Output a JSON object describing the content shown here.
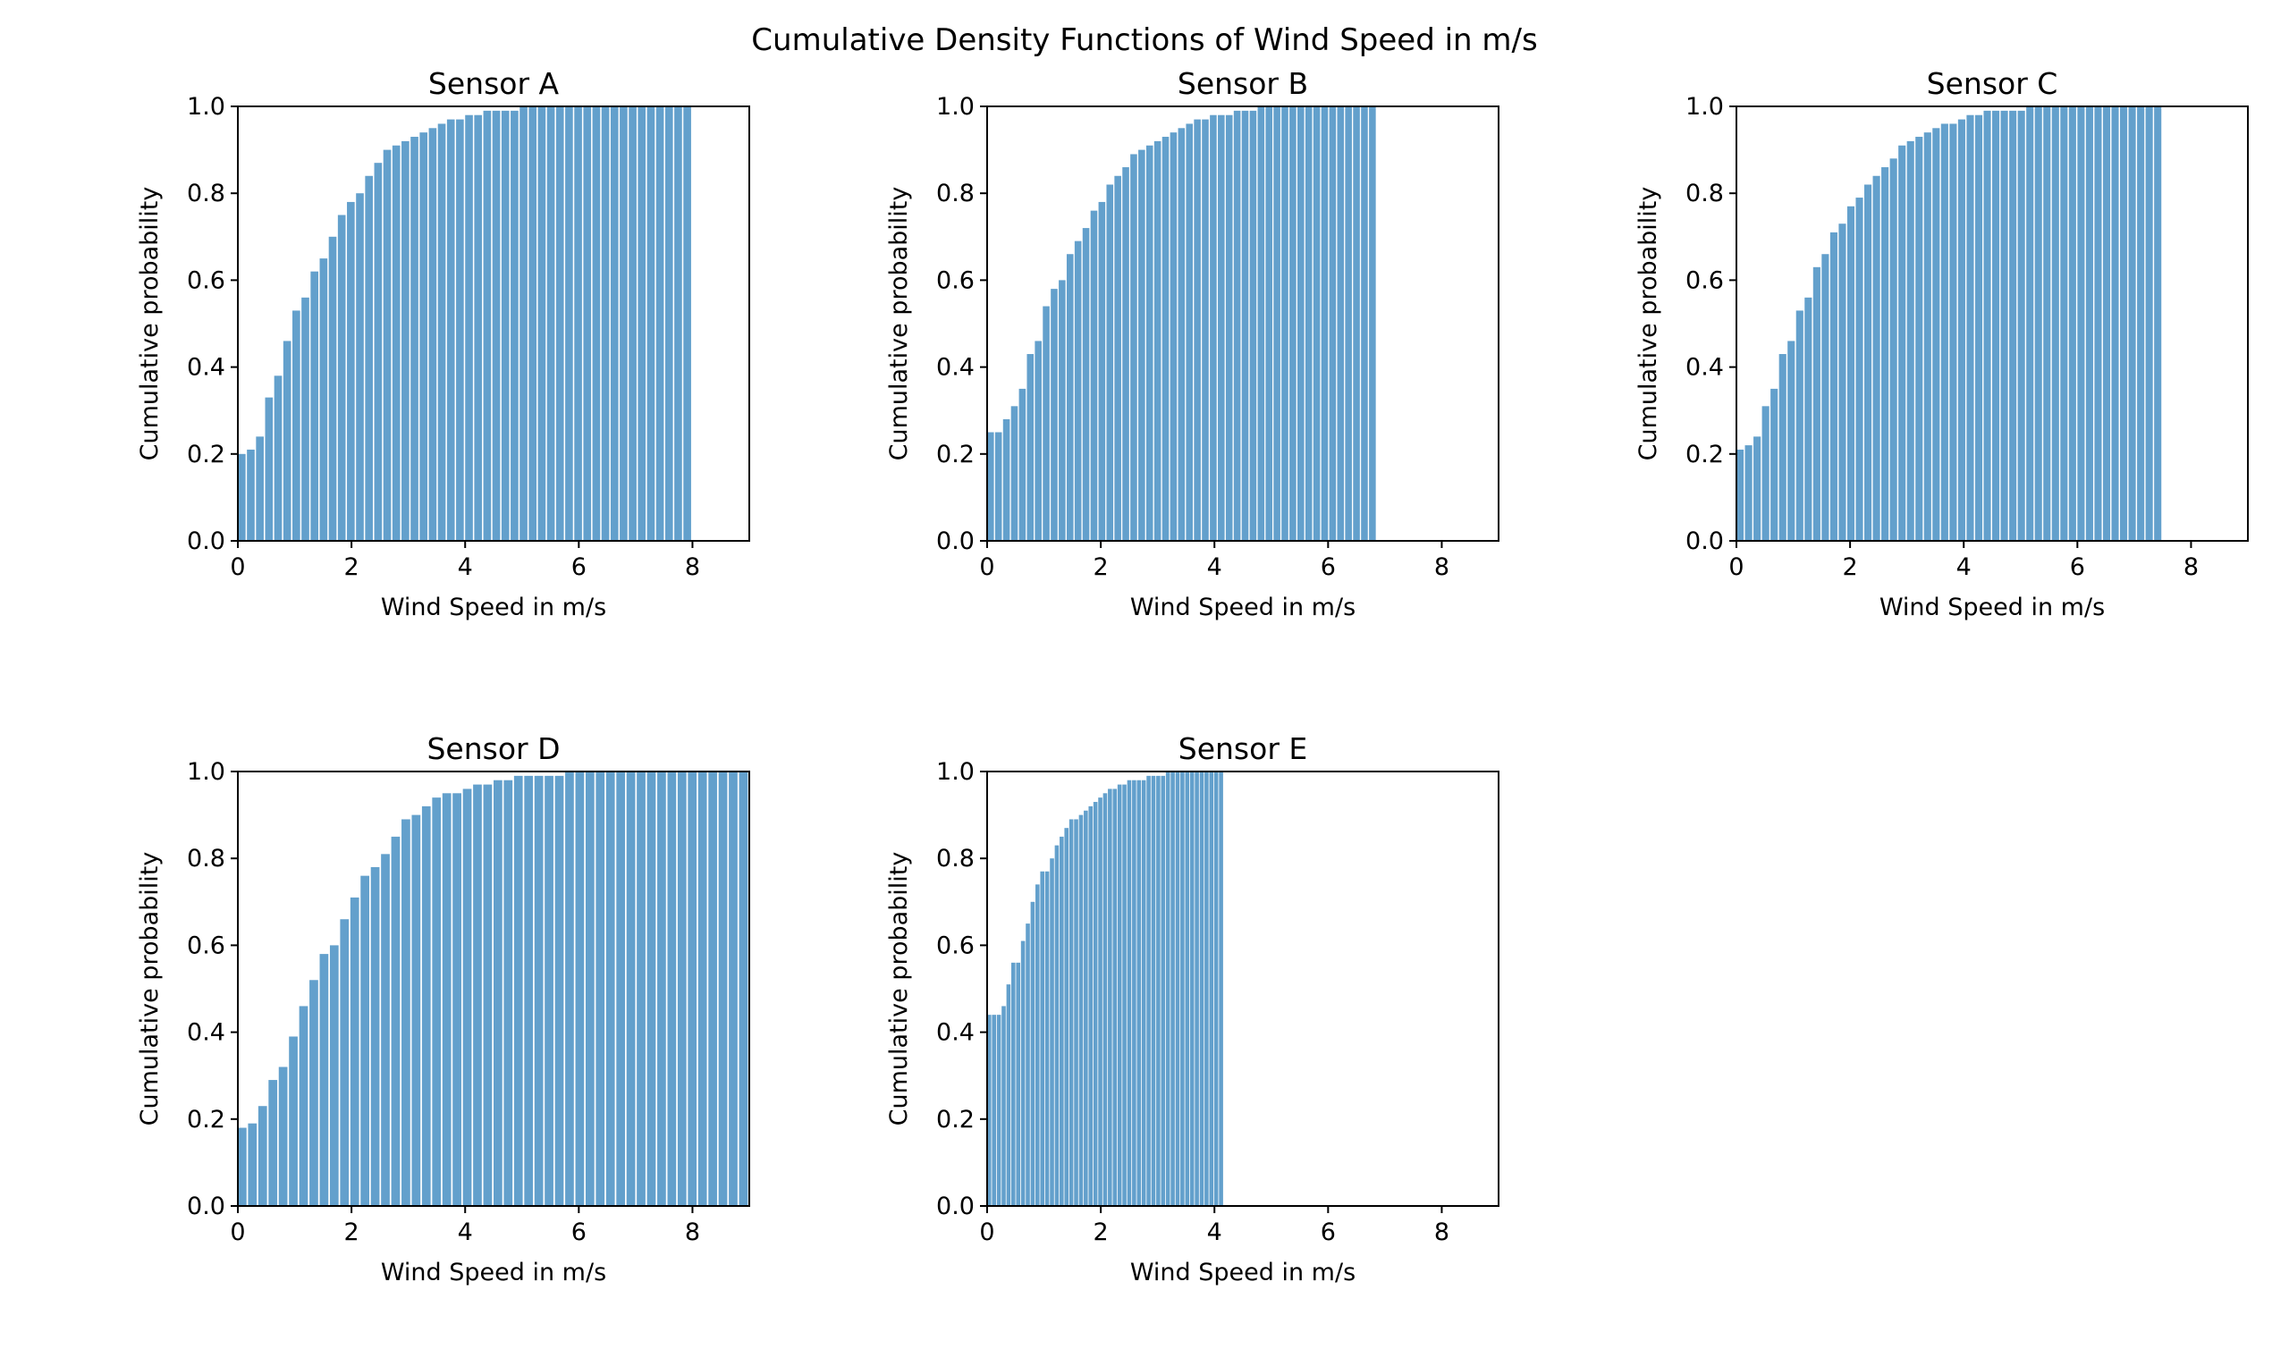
{
  "figure": {
    "title": "Cumulative Density Functions of Wind Speed in m/s",
    "bar_color": "#5b9bc9"
  },
  "chart_data": [
    {
      "type": "bar",
      "title": "Sensor A",
      "xlabel": "Wind Speed in m/s",
      "ylabel": "Cumulative probability",
      "xlim": [
        0,
        9
      ],
      "ylim": [
        0,
        1
      ],
      "xticks": [
        0,
        2,
        4,
        6,
        8
      ],
      "yticks": [
        0.0,
        0.2,
        0.4,
        0.6,
        0.8,
        1.0
      ],
      "x": [
        0.0,
        0.16,
        0.32,
        0.48,
        0.64,
        0.8,
        0.96,
        1.12,
        1.28,
        1.44,
        1.6,
        1.76,
        1.92,
        2.08,
        2.24,
        2.4,
        2.56,
        2.72,
        2.88,
        3.04,
        3.2,
        3.36,
        3.52,
        3.68,
        3.84,
        4.0,
        4.16,
        4.32,
        4.48,
        4.64,
        4.8,
        4.96,
        5.12,
        5.28,
        5.44,
        5.6,
        5.76,
        5.92,
        6.08,
        6.24,
        6.4,
        6.56,
        6.72,
        6.88,
        7.04,
        7.2,
        7.36,
        7.52,
        7.68,
        7.84
      ],
      "values": [
        0.2,
        0.21,
        0.24,
        0.33,
        0.38,
        0.46,
        0.53,
        0.56,
        0.62,
        0.65,
        0.7,
        0.75,
        0.78,
        0.8,
        0.84,
        0.87,
        0.9,
        0.91,
        0.92,
        0.93,
        0.94,
        0.95,
        0.96,
        0.97,
        0.97,
        0.98,
        0.98,
        0.99,
        0.99,
        0.99,
        0.99,
        1.0,
        1.0,
        1.0,
        1.0,
        1.0,
        1.0,
        1.0,
        1.0,
        1.0,
        1.0,
        1.0,
        1.0,
        1.0,
        1.0,
        1.0,
        1.0,
        1.0,
        1.0,
        1.0
      ]
    },
    {
      "type": "bar",
      "title": "Sensor B",
      "xlabel": "Wind Speed in m/s",
      "ylabel": "Cumulative probability",
      "xlim": [
        0,
        9
      ],
      "ylim": [
        0,
        1
      ],
      "xticks": [
        0,
        2,
        4,
        6,
        8
      ],
      "yticks": [
        0.0,
        0.2,
        0.4,
        0.6,
        0.8,
        1.0
      ],
      "x": [
        0.0,
        0.14,
        0.28,
        0.42,
        0.56,
        0.7,
        0.84,
        0.98,
        1.12,
        1.26,
        1.4,
        1.54,
        1.68,
        1.82,
        1.96,
        2.1,
        2.24,
        2.38,
        2.52,
        2.66,
        2.8,
        2.94,
        3.08,
        3.22,
        3.36,
        3.5,
        3.64,
        3.78,
        3.92,
        4.06,
        4.2,
        4.34,
        4.48,
        4.62,
        4.76,
        4.9,
        5.04,
        5.18,
        5.32,
        5.46,
        5.6,
        5.74,
        5.88,
        6.02,
        6.16,
        6.3,
        6.44,
        6.58,
        6.72
      ],
      "values": [
        0.25,
        0.25,
        0.28,
        0.31,
        0.35,
        0.43,
        0.46,
        0.54,
        0.58,
        0.6,
        0.66,
        0.69,
        0.72,
        0.76,
        0.78,
        0.82,
        0.84,
        0.86,
        0.89,
        0.9,
        0.91,
        0.92,
        0.93,
        0.94,
        0.95,
        0.96,
        0.97,
        0.97,
        0.98,
        0.98,
        0.98,
        0.99,
        0.99,
        0.99,
        1.0,
        1.0,
        1.0,
        1.0,
        1.0,
        1.0,
        1.0,
        1.0,
        1.0,
        1.0,
        1.0,
        1.0,
        1.0,
        1.0,
        1.0
      ]
    },
    {
      "type": "bar",
      "title": "Sensor C",
      "xlabel": "Wind Speed in m/s",
      "ylabel": "Cumulative probability",
      "xlim": [
        0,
        9
      ],
      "ylim": [
        0,
        1
      ],
      "xticks": [
        0,
        2,
        4,
        6,
        8
      ],
      "yticks": [
        0.0,
        0.2,
        0.4,
        0.6,
        0.8,
        1.0
      ],
      "x": [
        0.0,
        0.15,
        0.3,
        0.45,
        0.6,
        0.75,
        0.9,
        1.05,
        1.2,
        1.35,
        1.5,
        1.65,
        1.8,
        1.95,
        2.1,
        2.25,
        2.4,
        2.55,
        2.7,
        2.85,
        3.0,
        3.15,
        3.3,
        3.45,
        3.6,
        3.75,
        3.9,
        4.05,
        4.2,
        4.35,
        4.5,
        4.65,
        4.8,
        4.95,
        5.1,
        5.25,
        5.4,
        5.55,
        5.7,
        5.85,
        6.0,
        6.15,
        6.3,
        6.45,
        6.6,
        6.75,
        6.9,
        7.05,
        7.2,
        7.35
      ],
      "values": [
        0.21,
        0.22,
        0.24,
        0.31,
        0.35,
        0.43,
        0.46,
        0.53,
        0.56,
        0.63,
        0.66,
        0.71,
        0.73,
        0.77,
        0.79,
        0.82,
        0.84,
        0.86,
        0.88,
        0.91,
        0.92,
        0.93,
        0.94,
        0.95,
        0.96,
        0.96,
        0.97,
        0.98,
        0.98,
        0.99,
        0.99,
        0.99,
        0.99,
        0.99,
        1.0,
        1.0,
        1.0,
        1.0,
        1.0,
        1.0,
        1.0,
        1.0,
        1.0,
        1.0,
        1.0,
        1.0,
        1.0,
        1.0,
        1.0,
        1.0
      ]
    },
    {
      "type": "bar",
      "title": "Sensor D",
      "xlabel": "Wind Speed in m/s",
      "ylabel": "Cumulative probability",
      "xlim": [
        0,
        9
      ],
      "ylim": [
        0,
        1
      ],
      "xticks": [
        0,
        2,
        4,
        6,
        8
      ],
      "yticks": [
        0.0,
        0.2,
        0.4,
        0.6,
        0.8,
        1.0
      ],
      "x": [
        0.0,
        0.18,
        0.36,
        0.54,
        0.72,
        0.9,
        1.08,
        1.26,
        1.44,
        1.62,
        1.8,
        1.98,
        2.16,
        2.34,
        2.52,
        2.7,
        2.88,
        3.06,
        3.24,
        3.42,
        3.6,
        3.78,
        3.96,
        4.14,
        4.32,
        4.5,
        4.68,
        4.86,
        5.04,
        5.22,
        5.4,
        5.58,
        5.76,
        5.94,
        6.12,
        6.3,
        6.48,
        6.66,
        6.84,
        7.02,
        7.2,
        7.38,
        7.56,
        7.74,
        7.92,
        8.1,
        8.28,
        8.46,
        8.64,
        8.82
      ],
      "values": [
        0.18,
        0.19,
        0.23,
        0.29,
        0.32,
        0.39,
        0.46,
        0.52,
        0.58,
        0.6,
        0.66,
        0.71,
        0.76,
        0.78,
        0.81,
        0.85,
        0.89,
        0.9,
        0.92,
        0.94,
        0.95,
        0.95,
        0.96,
        0.97,
        0.97,
        0.98,
        0.98,
        0.99,
        0.99,
        0.99,
        0.99,
        0.99,
        1.0,
        1.0,
        1.0,
        1.0,
        1.0,
        1.0,
        1.0,
        1.0,
        1.0,
        1.0,
        1.0,
        1.0,
        1.0,
        1.0,
        1.0,
        1.0,
        1.0,
        1.0
      ]
    },
    {
      "type": "bar",
      "title": "Sensor E",
      "xlabel": "Wind Speed in m/s",
      "ylabel": "Cumulative probability",
      "xlim": [
        0,
        9
      ],
      "ylim": [
        0,
        1
      ],
      "xticks": [
        0,
        2,
        4,
        6,
        8
      ],
      "yticks": [
        0.0,
        0.2,
        0.4,
        0.6,
        0.8,
        1.0
      ],
      "x": [
        0.0,
        0.085,
        0.17,
        0.255,
        0.34,
        0.425,
        0.51,
        0.595,
        0.68,
        0.765,
        0.85,
        0.935,
        1.02,
        1.105,
        1.19,
        1.275,
        1.36,
        1.445,
        1.53,
        1.615,
        1.7,
        1.785,
        1.87,
        1.955,
        2.04,
        2.125,
        2.21,
        2.295,
        2.38,
        2.465,
        2.55,
        2.635,
        2.72,
        2.805,
        2.89,
        2.975,
        3.06,
        3.145,
        3.23,
        3.315,
        3.4,
        3.485,
        3.57,
        3.655,
        3.74,
        3.825,
        3.91,
        3.995,
        4.08
      ],
      "values": [
        0.44,
        0.44,
        0.44,
        0.46,
        0.51,
        0.56,
        0.56,
        0.61,
        0.65,
        0.7,
        0.74,
        0.77,
        0.77,
        0.8,
        0.83,
        0.85,
        0.87,
        0.89,
        0.89,
        0.9,
        0.91,
        0.92,
        0.93,
        0.94,
        0.95,
        0.96,
        0.96,
        0.97,
        0.97,
        0.98,
        0.98,
        0.98,
        0.98,
        0.99,
        0.99,
        0.99,
        0.99,
        1.0,
        1.0,
        1.0,
        1.0,
        1.0,
        1.0,
        1.0,
        1.0,
        1.0,
        1.0,
        1.0,
        1.0
      ]
    }
  ]
}
